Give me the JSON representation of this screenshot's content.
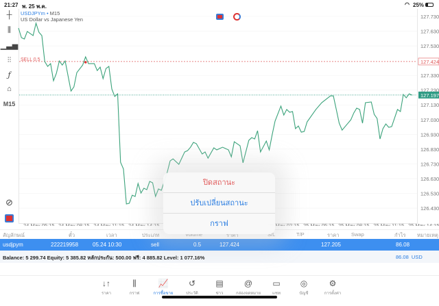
{
  "status": {
    "time": "21:27",
    "date": "พ. 25 พ.ค.",
    "battery": "25%"
  },
  "chart": {
    "symbol": "USDJPYm",
    "timeframe": "M15",
    "description": "US Dollar vs Japanese Yen",
    "order_label": "SELL 0.5",
    "tf_button": "M15"
  },
  "colors": {
    "line": "#3aa27a",
    "sell": "#e05a5a",
    "bid": "#2e9b84",
    "accent": "#2a7de1",
    "row": "#3d8ff0"
  },
  "chart_data": {
    "type": "line",
    "x_unit": "15-minute bars from first visible bar",
    "points": [
      [
        0,
        127.651
      ],
      [
        1,
        127.586
      ],
      [
        2,
        127.577
      ],
      [
        3,
        127.628
      ],
      [
        5,
        127.6
      ],
      [
        6,
        127.684
      ],
      [
        7,
        127.623
      ],
      [
        8,
        127.6
      ],
      [
        9,
        127.424
      ],
      [
        10,
        127.391
      ],
      [
        11,
        127.41
      ],
      [
        12,
        127.294
      ],
      [
        13,
        127.345
      ],
      [
        14,
        127.428
      ],
      [
        15,
        127.4
      ],
      [
        16,
        127.428
      ],
      [
        18,
        127.224
      ],
      [
        19,
        127.252
      ],
      [
        20,
        127.349
      ],
      [
        22,
        127.4
      ],
      [
        23,
        127.456
      ],
      [
        24,
        127.41
      ],
      [
        26,
        127.41
      ],
      [
        27,
        127.363
      ],
      [
        28,
        127.386
      ],
      [
        29,
        127.308
      ],
      [
        30,
        127.377
      ],
      [
        31,
        127.391
      ],
      [
        32,
        127.238
      ],
      [
        33,
        127.187
      ],
      [
        34,
        127.205
      ],
      [
        35,
        126.741
      ],
      [
        36,
        126.695
      ],
      [
        37,
        126.458
      ],
      [
        38,
        126.463
      ],
      [
        39,
        126.518
      ],
      [
        40,
        126.509
      ],
      [
        41,
        126.597
      ],
      [
        42,
        126.532
      ],
      [
        43,
        126.565
      ],
      [
        44,
        126.555
      ],
      [
        45,
        126.611
      ],
      [
        46,
        126.602
      ],
      [
        47,
        126.509
      ],
      [
        48,
        126.56
      ],
      [
        49,
        126.551
      ],
      [
        51,
        126.672
      ],
      [
        52,
        126.75
      ],
      [
        53,
        126.764
      ],
      [
        55,
        126.727
      ],
      [
        57,
        126.811
      ],
      [
        58,
        126.82
      ],
      [
        59,
        126.843
      ],
      [
        60,
        126.876
      ],
      [
        61,
        126.867
      ],
      [
        63,
        126.797
      ],
      [
        64,
        126.811
      ],
      [
        65,
        126.769
      ],
      [
        67,
        126.839
      ],
      [
        68,
        126.825
      ],
      [
        70,
        126.843
      ],
      [
        71,
        126.834
      ],
      [
        72,
        126.825
      ],
      [
        73,
        126.778
      ],
      [
        74,
        126.88
      ],
      [
        76,
        126.853
      ],
      [
        77,
        126.737
      ],
      [
        79,
        126.89
      ],
      [
        80,
        126.908
      ],
      [
        81,
        126.899
      ],
      [
        82,
        126.955
      ],
      [
        83,
        126.811
      ],
      [
        85,
        126.885
      ],
      [
        86,
        126.825
      ],
      [
        87,
        126.927
      ],
      [
        88,
        127.02
      ],
      [
        90,
        127.122
      ],
      [
        91,
        127.061
      ],
      [
        92,
        127.099
      ],
      [
        93,
        127.08
      ],
      [
        94,
        127.085
      ],
      [
        95,
        126.969
      ],
      [
        96,
        126.987
      ],
      [
        97,
        126.945
      ],
      [
        98,
        126.95
      ],
      [
        99,
        127.015
      ],
      [
        102,
        127.099
      ],
      [
        104,
        127.145
      ],
      [
        107,
        127.191
      ],
      [
        108,
        127.191
      ],
      [
        109,
        127.099
      ],
      [
        110,
        127.006
      ],
      [
        111,
        126.959
      ],
      [
        114,
        127.029
      ],
      [
        115,
        127.075
      ],
      [
        116,
        127.108
      ],
      [
        117,
        127.099
      ],
      [
        118,
        127.006
      ],
      [
        119,
        127.145
      ],
      [
        121,
        127.15
      ],
      [
        122,
        127.066
      ],
      [
        123,
        127.038
      ],
      [
        124,
        126.899
      ],
      [
        125,
        126.969
      ],
      [
        126,
        127.001
      ],
      [
        127,
        126.978
      ],
      [
        128,
        126.983
      ],
      [
        130,
        127.099
      ],
      [
        131,
        127.085
      ],
      [
        132,
        127.201
      ],
      [
        133,
        127.178
      ],
      [
        134,
        127.205
      ],
      [
        135,
        127.196
      ]
    ],
    "entry": {
      "bar": 23,
      "price": 127.424
    },
    "sell_level": 127.424,
    "bid_level": 127.197,
    "sell_label": "127.424",
    "bid_label": "127.197",
    "y_ticks": [
      "127.730",
      "127.630",
      "127.530",
      "127.330",
      "127.230",
      "127.130",
      "127.030",
      "126.930",
      "126.830",
      "126.730",
      "126.630",
      "126.530",
      "126.430"
    ],
    "y_tick_values": [
      127.73,
      127.63,
      127.53,
      127.33,
      127.23,
      127.13,
      127.03,
      126.93,
      126.83,
      126.73,
      126.63,
      126.53,
      126.43
    ],
    "x_ticks": [
      "24 May 05:15",
      "24 May 08:15",
      "24 May 11:15",
      "24 May 14:15",
      "25 May 02:15",
      "25 May 05:15",
      "25 May 08:15",
      "25 May 11:15",
      "25 May 14:15"
    ],
    "x_tick_bars": [
      7,
      19,
      31,
      43,
      91,
      103,
      115,
      127,
      139
    ],
    "ylim": [
      126.33,
      127.78
    ]
  },
  "table": {
    "headers": [
      "สัญลักษณ์",
      "ตั๋ว",
      "เวลา",
      "ประเภท",
      "Volume",
      "ราคา",
      "S/L",
      "T/P",
      "ราคา",
      "Swap",
      "กำไร",
      "หมายเหตุ"
    ],
    "row": {
      "symbol": "usdjpym",
      "ticket": "222219958",
      "time": "05.24 10:30",
      "type": "sell",
      "volume": "0.5",
      "open_price": "127.424",
      "current_price": "127.205",
      "profit": "86.08"
    },
    "summary": "Balance: 5 299.74 Equity: 5 385.82 หลักประกัน: 500.00 ฟรี: 4 885.82 Level: 1 077.16%",
    "total": "86.08  USD"
  },
  "popup": {
    "items": [
      "ปิดสถานะ",
      "ปรับเปลี่ยนสถานะ",
      "กราฟ"
    ]
  },
  "nav": [
    {
      "label": "ราคา",
      "icon": "↓↑"
    },
    {
      "label": "กราฟ",
      "icon": "⫼"
    },
    {
      "label": "การซื้อขาย",
      "icon": "📈"
    },
    {
      "label": "ประวัติ",
      "icon": "↺"
    },
    {
      "label": "ข่าว",
      "icon": "▤"
    },
    {
      "label": "กล่องจดหมาย",
      "icon": "@"
    },
    {
      "label": "แชท",
      "icon": "▭"
    },
    {
      "label": "บัญชี",
      "icon": "◎"
    },
    {
      "label": "การตั้งค่า",
      "icon": "⚙"
    }
  ]
}
